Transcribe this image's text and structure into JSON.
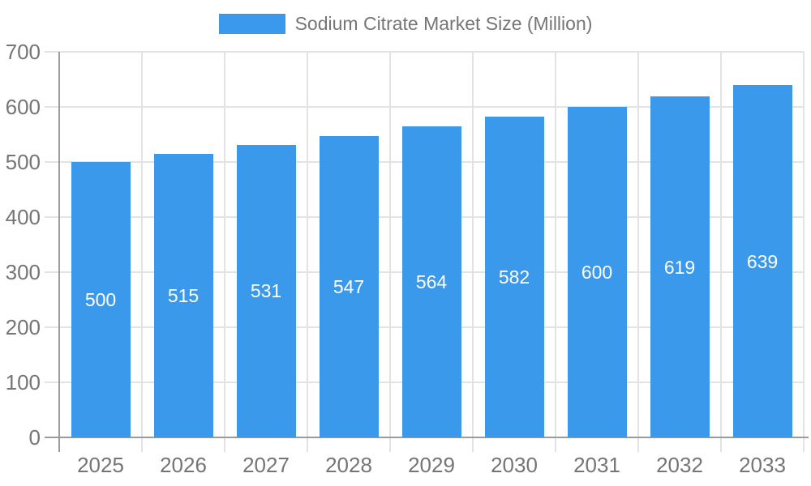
{
  "chart_data": {
    "type": "bar",
    "title": "Sodium Citrate Market Size (Million)",
    "categories": [
      "2025",
      "2026",
      "2027",
      "2028",
      "2029",
      "2030",
      "2031",
      "2032",
      "2033"
    ],
    "series": [
      {
        "name": "Sodium Citrate Market Size (Million)",
        "values": [
          500,
          515,
          531,
          547,
          564,
          582,
          600,
          619,
          639
        ]
      }
    ],
    "data_labels_shown": true,
    "xlabel": "",
    "ylabel": "",
    "ylim": [
      0,
      700
    ],
    "yticks": [
      0,
      100,
      200,
      300,
      400,
      500,
      600,
      700
    ],
    "ytick_labels": [
      "0",
      "100",
      "200",
      "300",
      "400",
      "500",
      "600",
      "700"
    ],
    "grid": true,
    "legend_position": "top-center",
    "colors": {
      "bar": "#3B99EC",
      "bar_label_text": "#FFFFFF",
      "axis_text": "#757575",
      "axis_line": "#9B9B9B",
      "gridline": "#E3E3E3",
      "background": "#FFFFFF"
    }
  }
}
